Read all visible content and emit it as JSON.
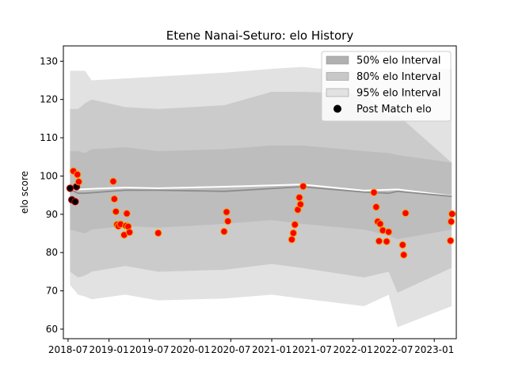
{
  "chart_data": {
    "type": "area",
    "title": "Etene Nanai-Seturo: elo History",
    "xlabel": "",
    "ylabel": "elo score",
    "ylim": [
      57.5,
      134
    ],
    "xlim": [
      "2018-06-10",
      "2023-04-10"
    ],
    "yticks": [
      60,
      70,
      80,
      90,
      100,
      110,
      120,
      130
    ],
    "xticks": [
      {
        "date": "2018-07-01",
        "label": "2018-07"
      },
      {
        "date": "2019-01-01",
        "label": "2019-01"
      },
      {
        "date": "2019-07-01",
        "label": "2019-07"
      },
      {
        "date": "2020-01-01",
        "label": "2020-01"
      },
      {
        "date": "2020-07-01",
        "label": "2020-07"
      },
      {
        "date": "2021-01-01",
        "label": "2021-01"
      },
      {
        "date": "2021-07-01",
        "label": "2021-07"
      },
      {
        "date": "2022-01-01",
        "label": "2022-01"
      },
      {
        "date": "2022-07-01",
        "label": "2022-07"
      },
      {
        "date": "2023-01-01",
        "label": "2023-01"
      }
    ],
    "legend": {
      "placement": "top-right",
      "entries": [
        {
          "label": "50% elo Interval",
          "color": "#b0b0b0"
        },
        {
          "label": "80% elo Interval",
          "color": "#c8c8c8"
        },
        {
          "label": "95% elo Interval",
          "color": "#e2e2e2"
        },
        {
          "label": "Post Match elo",
          "color": "#000000"
        }
      ]
    },
    "bands": [
      {
        "name": "95% elo Interval",
        "color": "#e2e2e2",
        "x": [
          "2018-07-10",
          "2018-08-15",
          "2018-09-15",
          "2018-10-15",
          "2019-03-15",
          "2019-08-10",
          "2020-06-01",
          "2021-01-01",
          "2021-05-15",
          "2022-02-20",
          "2022-06-10",
          "2022-07-20",
          "2023-03-20"
        ],
        "lower": [
          71.5,
          69,
          68.5,
          67.8,
          69,
          67.5,
          68,
          69,
          68,
          66,
          69,
          60.5,
          66
        ],
        "upper": [
          127.5,
          127.5,
          127.5,
          125,
          125.5,
          126,
          127,
          128,
          128.5,
          127,
          125,
          128,
          128
        ]
      },
      {
        "name": "80% elo Interval",
        "color": "#cbcbcb",
        "x": [
          "2018-07-10",
          "2018-08-15",
          "2018-09-15",
          "2018-10-15",
          "2019-03-15",
          "2019-08-10",
          "2020-06-01",
          "2021-01-01",
          "2021-05-15",
          "2022-02-20",
          "2022-06-10",
          "2022-07-20",
          "2023-03-20"
        ],
        "lower": [
          75,
          73.5,
          74,
          75,
          76.5,
          75,
          75.5,
          77,
          76,
          73.5,
          75,
          69.5,
          76
        ],
        "upper": [
          117.5,
          117.5,
          119,
          120,
          118,
          117.5,
          118.5,
          122,
          122,
          121.5,
          115.5,
          116,
          103.5
        ]
      },
      {
        "name": "50% elo Interval",
        "color": "#bdbdbd",
        "x": [
          "2018-07-10",
          "2018-08-15",
          "2018-09-15",
          "2018-10-15",
          "2019-03-15",
          "2019-08-10",
          "2020-06-01",
          "2021-01-01",
          "2021-05-15",
          "2022-02-20",
          "2022-06-10",
          "2022-07-20",
          "2023-03-20"
        ],
        "lower": [
          86,
          85.5,
          85,
          86,
          87,
          86.5,
          87.5,
          88.5,
          87.5,
          86,
          84.5,
          83.5,
          86
        ],
        "upper": [
          106.5,
          106.5,
          106,
          107,
          107.5,
          106.5,
          107,
          108,
          108,
          106.5,
          106,
          105.5,
          103.5
        ]
      }
    ],
    "series": [
      {
        "name": "",
        "color": "#ffffff",
        "x": [
          "2018-07-10",
          "2018-08-15",
          "2019-03-15",
          "2019-08-10",
          "2020-06-01",
          "2021-05-15",
          "2022-02-20",
          "2022-07-20",
          "2023-03-20"
        ],
        "values": [
          96.5,
          96.5,
          97,
          96.8,
          97.2,
          97.8,
          96.2,
          96.5,
          94.8
        ]
      },
      {
        "name": "",
        "color": "#8c8c8c",
        "x": [
          "2018-07-10",
          "2018-08-15",
          "2018-09-15",
          "2019-03-15",
          "2019-08-10",
          "2020-06-01",
          "2021-05-15",
          "2022-02-20",
          "2022-06-10",
          "2022-07-20",
          "2023-03-20"
        ],
        "values": [
          96.5,
          95.5,
          95.5,
          96.3,
          96.3,
          96.0,
          97.2,
          95.8,
          95.5,
          96.0,
          94.7
        ]
      }
    ],
    "points": {
      "name": "Post Match elo",
      "x": [
        "2018-07-10",
        "2018-07-18",
        "2018-07-25",
        "2018-08-02",
        "2018-08-08",
        "2018-08-12",
        "2018-08-18",
        "2019-01-20",
        "2019-01-25",
        "2019-02-01",
        "2019-02-06",
        "2019-02-12",
        "2019-02-22",
        "2019-03-10",
        "2019-03-18",
        "2019-03-22",
        "2019-03-28",
        "2019-04-03",
        "2019-08-10",
        "2020-06-01",
        "2020-06-12",
        "2020-06-18",
        "2021-04-01",
        "2021-04-08",
        "2021-04-15",
        "2021-04-28",
        "2021-05-05",
        "2021-05-10",
        "2021-05-22",
        "2022-04-05",
        "2022-04-15",
        "2022-04-22",
        "2022-04-28",
        "2022-05-03",
        "2022-05-15",
        "2022-06-01",
        "2022-06-10",
        "2022-08-12",
        "2022-08-17",
        "2022-08-25",
        "2023-03-15",
        "2023-03-18",
        "2023-03-22"
      ],
      "values": [
        96.8,
        93.8,
        101.3,
        93.3,
        97.2,
        100.4,
        98.5,
        98.6,
        94.0,
        90.7,
        87.3,
        86.9,
        87.4,
        84.6,
        87.0,
        90.2,
        86.8,
        85.3,
        85.1,
        85.5,
        90.6,
        88.2,
        83.4,
        85.1,
        87.3,
        91.2,
        94.4,
        92.6,
        97.3,
        95.7,
        91.9,
        88.1,
        83.0,
        87.5,
        85.8,
        82.9,
        85.4,
        82.0,
        79.4,
        90.3,
        83.1,
        88.1,
        90.1
      ],
      "colors": [
        "#000000",
        "#000000",
        "#ff0000",
        "#000000",
        "#000000",
        "#ff0000",
        "#ff0000",
        "#ff0000",
        "#ff0000",
        "#ff0000",
        "#ff0000",
        "#ff0000",
        "#ff0000",
        "#ff0000",
        "#ff0000",
        "#ff0000",
        "#ff0000",
        "#ff0000",
        "#ff0000",
        "#ff0000",
        "#ff0000",
        "#ff0000",
        "#ff0000",
        "#ff0000",
        "#ff0000",
        "#ff0000",
        "#ff0000",
        "#ff0000",
        "#ff0000",
        "#ff0000",
        "#ff0000",
        "#ff0000",
        "#ff0000",
        "#ff0000",
        "#ff0000",
        "#ff0000",
        "#ff0000",
        "#ff0000",
        "#ff0000",
        "#ff0000",
        "#ff0000",
        "#ff0000",
        "#ff0000"
      ]
    },
    "grid": false
  }
}
